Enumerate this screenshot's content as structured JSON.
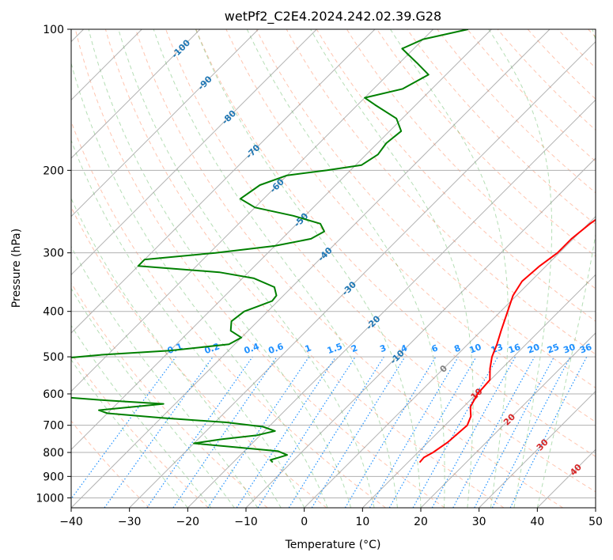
{
  "chart_data": {
    "type": "line",
    "subtype": "skew-t log-p diagram",
    "title": "wetPf2_C2E4.2024.242.02.39.G28",
    "xlabel": "Temperature (°C)",
    "ylabel": "Pressure (hPa)",
    "xlim": [
      -40,
      50
    ],
    "ylim": [
      1050,
      100
    ],
    "y_scale": "log",
    "grid": true,
    "x_ticks": [
      -40,
      -30,
      -20,
      -10,
      0,
      10,
      20,
      30,
      40,
      50
    ],
    "x_tick_labels": [
      "−40",
      "−30",
      "−20",
      "−10",
      "0",
      "10",
      "20",
      "30",
      "40",
      "50"
    ],
    "y_ticks": [
      1000,
      900,
      800,
      700,
      600,
      500,
      400,
      300,
      200,
      100
    ],
    "y_tick_labels": [
      "1000",
      "900",
      "800",
      "700",
      "600",
      "500",
      "400",
      "300",
      "200",
      "100"
    ],
    "series": [
      {
        "role": "temperature",
        "color": "#ff0000",
        "points": [
          {
            "p": 840,
            "t": 12.0
          },
          {
            "p": 820,
            "t": 11.9
          },
          {
            "p": 800,
            "t": 12.6
          },
          {
            "p": 760,
            "t": 13.4
          },
          {
            "p": 700,
            "t": 13.8
          },
          {
            "p": 670,
            "t": 12.9
          },
          {
            "p": 640,
            "t": 11.2
          },
          {
            "p": 600,
            "t": 10.2
          },
          {
            "p": 560,
            "t": 9.9
          },
          {
            "p": 530,
            "t": 8.0
          },
          {
            "p": 500,
            "t": 6.3
          },
          {
            "p": 470,
            "t": 5.0
          },
          {
            "p": 440,
            "t": 3.4
          },
          {
            "p": 400,
            "t": 1.2
          },
          {
            "p": 370,
            "t": -0.6
          },
          {
            "p": 345,
            "t": -1.5
          },
          {
            "p": 320,
            "t": -1.1
          },
          {
            "p": 300,
            "t": -0.3
          },
          {
            "p": 280,
            "t": -0.3
          },
          {
            "p": 260,
            "t": 0.3
          },
          {
            "p": 240,
            "t": 1.4
          },
          {
            "p": 220,
            "t": 1.2
          },
          {
            "p": 205,
            "t": 0.0
          },
          {
            "p": 190,
            "t": -0.8
          },
          {
            "p": 175,
            "t": -1.5
          },
          {
            "p": 160,
            "t": -1.8
          },
          {
            "p": 150,
            "t": -2.8
          },
          {
            "p": 142,
            "t": -4.6
          },
          {
            "p": 135,
            "t": -6.0
          },
          {
            "p": 125,
            "t": -7.0
          },
          {
            "p": 115,
            "t": -8.0
          },
          {
            "p": 108,
            "t": -8.8
          },
          {
            "p": 100,
            "t": -9.5
          }
        ]
      },
      {
        "role": "dewpoint",
        "color": "#008000",
        "points": [
          {
            "p": 840,
            "t": -13.2
          },
          {
            "p": 830,
            "t": -14.0
          },
          {
            "p": 820,
            "t": -13.0
          },
          {
            "p": 810,
            "t": -12.0
          },
          {
            "p": 795,
            "t": -14.2
          },
          {
            "p": 780,
            "t": -22.0
          },
          {
            "p": 765,
            "t": -30.0
          },
          {
            "p": 750,
            "t": -26.0
          },
          {
            "p": 735,
            "t": -20.5
          },
          {
            "p": 720,
            "t": -18.2
          },
          {
            "p": 705,
            "t": -21.0
          },
          {
            "p": 690,
            "t": -28.0
          },
          {
            "p": 675,
            "t": -40.0
          },
          {
            "p": 660,
            "t": -50.0
          },
          {
            "p": 650,
            "t": -52.0
          },
          {
            "p": 640,
            "t": -47.0
          },
          {
            "p": 630,
            "t": -42.0
          },
          {
            "p": 620,
            "t": -52.0
          },
          {
            "p": 610,
            "t": -60.0
          },
          {
            "p": 560,
            "t": -72.0
          },
          {
            "p": 505,
            "t": -68.0
          },
          {
            "p": 495,
            "t": -61.0
          },
          {
            "p": 485,
            "t": -50.0
          },
          {
            "p": 470,
            "t": -41.0
          },
          {
            "p": 455,
            "t": -40.0
          },
          {
            "p": 440,
            "t": -43.0
          },
          {
            "p": 420,
            "t": -44.5
          },
          {
            "p": 400,
            "t": -44.0
          },
          {
            "p": 390,
            "t": -42.5
          },
          {
            "p": 380,
            "t": -41.0
          },
          {
            "p": 370,
            "t": -41.2
          },
          {
            "p": 355,
            "t": -43.0
          },
          {
            "p": 340,
            "t": -48.0
          },
          {
            "p": 330,
            "t": -55.0
          },
          {
            "p": 320,
            "t": -70.0
          },
          {
            "p": 310,
            "t": -70.0
          },
          {
            "p": 300,
            "t": -59.0
          },
          {
            "p": 290,
            "t": -50.0
          },
          {
            "p": 280,
            "t": -45.0
          },
          {
            "p": 270,
            "t": -44.0
          },
          {
            "p": 260,
            "t": -46.0
          },
          {
            "p": 250,
            "t": -52.0
          },
          {
            "p": 240,
            "t": -60.0
          },
          {
            "p": 230,
            "t": -64.0
          },
          {
            "p": 215,
            "t": -63.0
          },
          {
            "p": 205,
            "t": -60.0
          },
          {
            "p": 200,
            "t": -54.0
          },
          {
            "p": 195,
            "t": -49.0
          },
          {
            "p": 185,
            "t": -48.0
          },
          {
            "p": 175,
            "t": -48.5
          },
          {
            "p": 165,
            "t": -48.0
          },
          {
            "p": 155,
            "t": -51.0
          },
          {
            "p": 145,
            "t": -57.0
          },
          {
            "p": 140,
            "t": -60.0
          },
          {
            "p": 134,
            "t": -55.0
          },
          {
            "p": 125,
            "t": -53.0
          },
          {
            "p": 118,
            "t": -57.0
          },
          {
            "p": 110,
            "t": -62.0
          },
          {
            "p": 105,
            "t": -60.0
          },
          {
            "p": 100,
            "t": -54.0
          }
        ]
      }
    ],
    "background_lines": {
      "dry_adiabats": {
        "color": "#ff7f50",
        "style": "dashed"
      },
      "moist_adiabats": {
        "color": "#2ca02c",
        "style": "dashed"
      },
      "isotherms": {
        "color": "#808080",
        "style": "solid",
        "skewed": true
      },
      "mixing_ratio_lines": {
        "color": "#1e90ff",
        "style": "dotted"
      },
      "isobars": {
        "color": "#b0b0b0",
        "style": "solid"
      }
    },
    "mixing_ratio_labels": [
      "0.1",
      "0.2",
      "0.4",
      "0.6",
      "1",
      "1.5",
      "2",
      "3",
      "4",
      "6",
      "8",
      "10",
      "13",
      "16",
      "20",
      "25",
      "30",
      "36"
    ],
    "isotherm_labels_upper": [
      "-100",
      "-90",
      "-80",
      "-70",
      "-60",
      "-50",
      "-40",
      "-30",
      "-20",
      "-10"
    ],
    "isotherm_labels_lower": [
      "0",
      "10",
      "20",
      "30",
      "40"
    ],
    "isotherm_label_colors": {
      "upper": "#1f77b4",
      "zero": "#808080",
      "lower": "#d62728"
    }
  }
}
